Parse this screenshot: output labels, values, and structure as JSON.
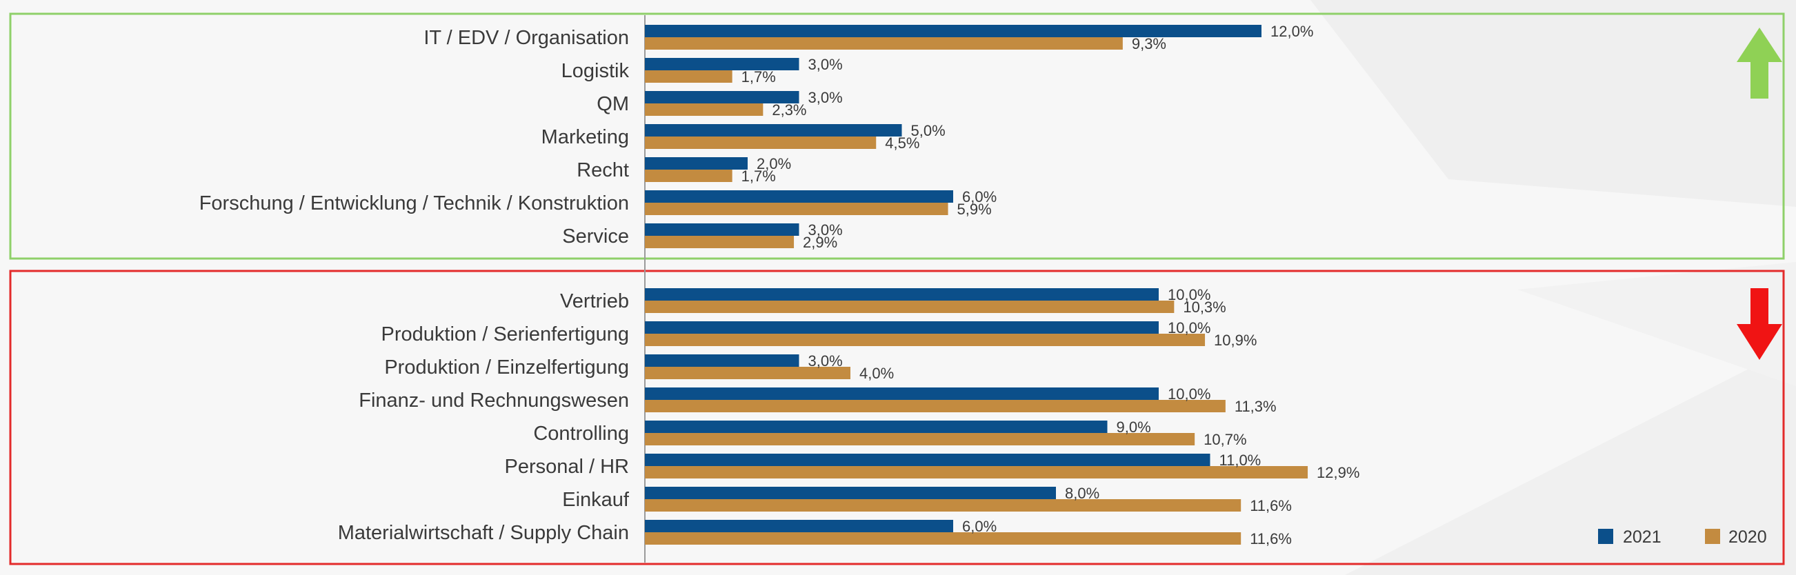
{
  "colors": {
    "series_2021": "#0b4f8a",
    "series_2020": "#c38b40",
    "frame_top": "#8fd06a",
    "frame_bottom": "#e32b2b",
    "arrow_up": "#8fd155",
    "arrow_down": "#f01414",
    "axis": "#9a9a9a"
  },
  "icons": {
    "top_group": "arrow-up-icon",
    "bottom_group": "arrow-down-icon"
  },
  "chart_data": {
    "type": "bar",
    "orientation": "horizontal",
    "value_format": "percent, decimal comma",
    "xlim": [
      0,
      14
    ],
    "grid": false,
    "legend_position": "bottom-right",
    "legend": [
      "2021",
      "2020"
    ],
    "groups": [
      {
        "trend": "up",
        "categories": [
          "IT / EDV / Organisation",
          "Logistik",
          "QM",
          "Marketing",
          "Recht",
          "Forschung / Entwicklung / Technik / Konstruktion",
          "Service"
        ],
        "series": [
          {
            "name": "2021",
            "values": [
              12.0,
              3.0,
              3.0,
              5.0,
              2.0,
              6.0,
              3.0
            ],
            "labels": [
              "12,0%",
              "3,0%",
              "3,0%",
              "5,0%",
              "2,0%",
              "6,0%",
              "3,0%"
            ]
          },
          {
            "name": "2020",
            "values": [
              9.3,
              1.7,
              2.3,
              4.5,
              1.7,
              5.9,
              2.9
            ],
            "labels": [
              "9,3%",
              "1,7%",
              "2,3%",
              "4,5%",
              "1,7%",
              "5,9%",
              "2,9%"
            ]
          }
        ]
      },
      {
        "trend": "down",
        "categories": [
          "Vertrieb",
          "Produktion / Serienfertigung",
          "Produktion / Einzelfertigung",
          "Finanz- und Rechnungswesen",
          "Controlling",
          "Personal / HR",
          "Einkauf",
          "Materialwirtschaft / Supply Chain"
        ],
        "series": [
          {
            "name": "2021",
            "values": [
              10.0,
              10.0,
              3.0,
              10.0,
              9.0,
              11.0,
              8.0,
              6.0
            ],
            "labels": [
              "10,0%",
              "10,0%",
              "3,0%",
              "10,0%",
              "9,0%",
              "11,0%",
              "8,0%",
              "6,0%"
            ]
          },
          {
            "name": "2020",
            "values": [
              10.3,
              10.9,
              4.0,
              11.3,
              10.7,
              12.9,
              11.6,
              11.6
            ],
            "labels": [
              "10,3%",
              "10,9%",
              "4,0%",
              "11,3%",
              "10,7%",
              "12,9%",
              "11,6%",
              "11,6%"
            ]
          }
        ]
      }
    ]
  }
}
